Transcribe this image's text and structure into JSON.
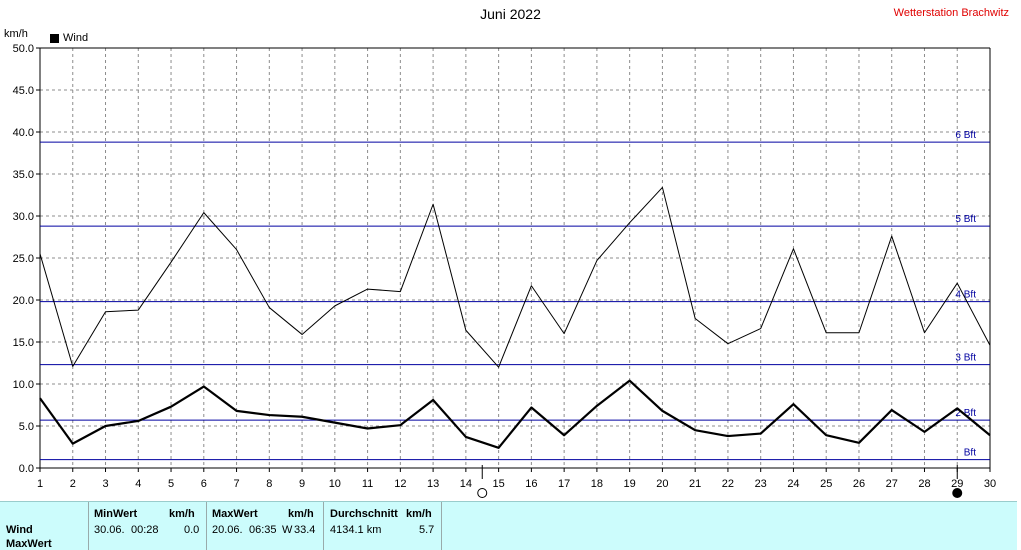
{
  "header": {
    "title": "Juni 2022",
    "station": "Wetterstation Brachwitz",
    "unit": "km/h",
    "legend": "Wind"
  },
  "chart_data": {
    "type": "line",
    "title": "Juni 2022",
    "ylabel": "km/h",
    "ylim": [
      0,
      50
    ],
    "yticks": [
      "0.0",
      "5.0",
      "10.0",
      "15.0",
      "20.0",
      "25.0",
      "30.0",
      "35.0",
      "40.0",
      "45.0",
      "50.0"
    ],
    "x": [
      1,
      2,
      3,
      4,
      5,
      6,
      7,
      8,
      9,
      10,
      11,
      12,
      13,
      14,
      15,
      16,
      17,
      18,
      19,
      20,
      21,
      22,
      23,
      24,
      25,
      26,
      27,
      28,
      29,
      30
    ],
    "grid": true,
    "series": [
      {
        "name": "Wind",
        "role": "max",
        "color": "#000000",
        "values": [
          25.5,
          12.1,
          18.6,
          18.8,
          24.5,
          30.4,
          26.0,
          19.1,
          15.9,
          19.3,
          21.3,
          21.0,
          31.4,
          16.4,
          12.0,
          21.7,
          16.0,
          24.7,
          29.2,
          33.4,
          17.8,
          14.8,
          16.6,
          26.1,
          16.1,
          16.1,
          27.6,
          16.1,
          22.0,
          14.6
        ]
      },
      {
        "name": "Wind",
        "role": "avg",
        "color": "#000000",
        "values": [
          8.3,
          2.9,
          5.0,
          5.6,
          7.3,
          9.7,
          6.8,
          6.3,
          6.1,
          5.4,
          4.7,
          5.1,
          8.1,
          3.7,
          2.4,
          7.2,
          3.9,
          7.4,
          10.4,
          6.8,
          4.5,
          3.8,
          4.1,
          7.6,
          3.9,
          3.0,
          6.9,
          4.3,
          7.1,
          3.9
        ]
      }
    ],
    "beaufort": [
      {
        "label": "Bft",
        "value": 1.0
      },
      {
        "label": "2 Bft",
        "value": 5.7
      },
      {
        "label": "3 Bft",
        "value": 12.3
      },
      {
        "label": "4 Bft",
        "value": 19.8
      },
      {
        "label": "5 Bft",
        "value": 28.8
      },
      {
        "label": "6 Bft",
        "value": 38.8
      }
    ],
    "moon": [
      {
        "day": 14.5,
        "phase": "full"
      },
      {
        "day": 29,
        "phase": "new"
      }
    ],
    "colors": {
      "beaufort": "#0000a0",
      "grid": "#8c8c8c"
    }
  },
  "stats": {
    "row_labels": [
      "Wind",
      "MaxWert"
    ],
    "min": {
      "header": "MinWert",
      "unit": "km/h",
      "date": "30.06.",
      "time": "00:28",
      "value": "0.0"
    },
    "max": {
      "header": "MaxWert",
      "unit": "km/h",
      "date": "20.06.",
      "time": "06:35",
      "dir": "W",
      "value": "33.4"
    },
    "avg": {
      "header": "Durchschnitt",
      "unit": "km/h",
      "distance": "4134.1 km",
      "value": "5.7"
    }
  }
}
